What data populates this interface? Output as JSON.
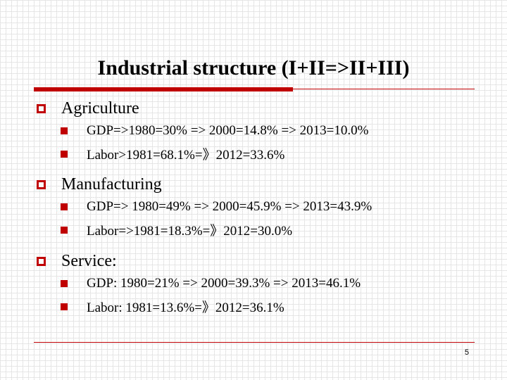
{
  "slide": {
    "title": "Industrial structure (I+II=>II+III)",
    "page_number": "5"
  },
  "sections": [
    {
      "heading": "Agriculture",
      "items": [
        "GDP=>1980=30% =>  2000=14.8% =>  2013=10.0%",
        "Labor>1981=68.1%=》2012=33.6%"
      ]
    },
    {
      "heading": "Manufacturing",
      "items": [
        "GDP=> 1980=49%  =>  2000=45.9%  => 2013=43.9%",
        "Labor=>1981=18.3%=》2012=30.0%"
      ]
    },
    {
      "heading": "Service:",
      "items": [
        "GDP: 1980=21%  =>  2000=39.3%  => 2013=46.1%",
        "Labor:  1981=13.6%=》2012=36.1%"
      ]
    }
  ],
  "colors": {
    "accent": "#c00000",
    "grid": "#e6e6e6",
    "text": "#000000"
  },
  "icons": {
    "level1_bullet": "hollow-square-icon",
    "level2_bullet": "filled-square-icon"
  }
}
